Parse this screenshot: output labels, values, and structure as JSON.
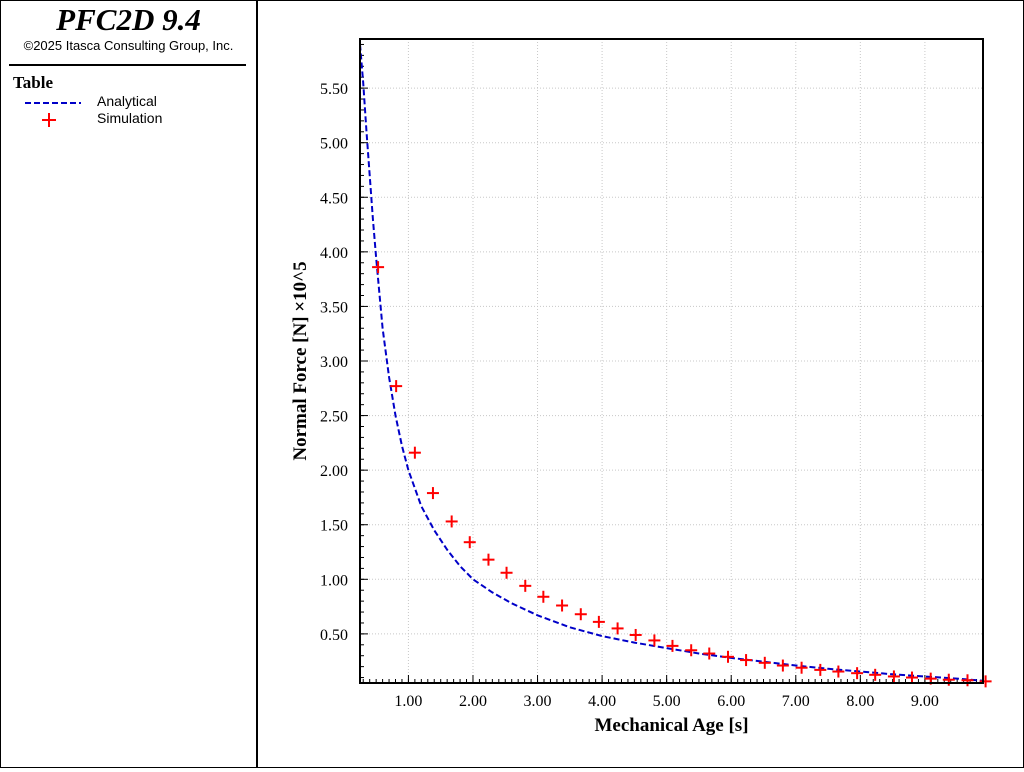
{
  "app": {
    "title": "PFC2D 9.4",
    "copyright": "©2025 Itasca Consulting Group, Inc."
  },
  "legend": {
    "title": "Table",
    "items": [
      {
        "label": "Analytical",
        "style": "dashed-line",
        "color": "#0000c8"
      },
      {
        "label": "Simulation",
        "style": "plus-marker",
        "color": "#ff0000"
      }
    ]
  },
  "chart_data": {
    "type": "line",
    "xlabel": "Mechanical Age [s]",
    "ylabel": "Normal Force [N] ×10^5",
    "xlim": [
      0.25,
      9.9
    ],
    "ylim": [
      0.05,
      5.95
    ],
    "x_ticks": [
      "1.00",
      "2.00",
      "3.00",
      "4.00",
      "5.00",
      "6.00",
      "7.00",
      "8.00",
      "9.00"
    ],
    "y_ticks": [
      "0.50",
      "1.00",
      "1.50",
      "2.00",
      "2.50",
      "3.00",
      "3.50",
      "4.00",
      "4.50",
      "5.00",
      "5.50"
    ],
    "grid": true,
    "series": [
      {
        "name": "Analytical",
        "style": "dashed",
        "color": "#0000c8",
        "x": [
          0.25,
          0.3,
          0.35,
          0.4,
          0.45,
          0.5,
          0.6,
          0.7,
          0.8,
          0.9,
          1.0,
          1.2,
          1.4,
          1.6,
          1.8,
          2.0,
          2.3,
          2.6,
          3.0,
          3.5,
          4.0,
          4.5,
          5.0,
          5.5,
          6.0,
          6.5,
          7.0,
          7.5,
          8.0,
          8.5,
          9.0,
          9.5,
          9.9
        ],
        "y": [
          5.9,
          5.55,
          5.1,
          4.7,
          4.3,
          3.95,
          3.3,
          2.85,
          2.5,
          2.22,
          2.0,
          1.67,
          1.45,
          1.27,
          1.12,
          1.0,
          0.88,
          0.78,
          0.67,
          0.56,
          0.48,
          0.42,
          0.37,
          0.32,
          0.28,
          0.245,
          0.21,
          0.18,
          0.155,
          0.13,
          0.11,
          0.09,
          0.07
        ]
      },
      {
        "name": "Simulation",
        "style": "markers",
        "marker": "plus",
        "color": "#ff0000",
        "x": [
          0.53,
          0.81,
          1.1,
          1.38,
          1.67,
          1.95,
          2.24,
          2.52,
          2.81,
          3.09,
          3.38,
          3.67,
          3.95,
          4.24,
          4.52,
          4.81,
          5.09,
          5.38,
          5.66,
          5.95,
          6.23,
          6.52,
          6.8,
          7.09,
          7.38,
          7.66,
          7.95,
          8.23,
          8.52,
          8.8,
          9.09,
          9.37,
          9.66,
          9.94
        ],
        "y": [
          3.86,
          2.77,
          2.16,
          1.79,
          1.53,
          1.34,
          1.18,
          1.06,
          0.94,
          0.84,
          0.76,
          0.68,
          0.61,
          0.55,
          0.49,
          0.44,
          0.39,
          0.35,
          0.32,
          0.29,
          0.26,
          0.235,
          0.21,
          0.19,
          0.17,
          0.155,
          0.14,
          0.125,
          0.11,
          0.1,
          0.09,
          0.08,
          0.075,
          0.065
        ]
      }
    ]
  }
}
